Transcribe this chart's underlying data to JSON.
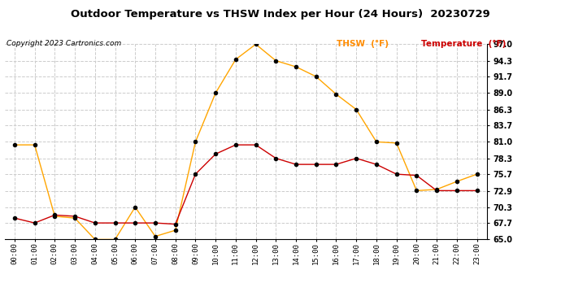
{
  "title": "Outdoor Temperature vs THSW Index per Hour (24 Hours)  20230729",
  "copyright": "Copyright 2023 Cartronics.com",
  "legend_thsw": "THSW  (°F)",
  "legend_temp": "Temperature  (°F)",
  "hours": [
    "00:00",
    "01:00",
    "02:00",
    "03:00",
    "04:00",
    "05:00",
    "06:00",
    "07:00",
    "08:00",
    "09:00",
    "10:00",
    "11:00",
    "12:00",
    "13:00",
    "14:00",
    "15:00",
    "16:00",
    "17:00",
    "18:00",
    "19:00",
    "20:00",
    "21:00",
    "22:00",
    "23:00"
  ],
  "thsw": [
    80.5,
    80.5,
    68.8,
    68.5,
    65.0,
    65.0,
    70.3,
    65.5,
    66.5,
    81.0,
    89.0,
    94.5,
    97.0,
    94.3,
    93.3,
    91.7,
    88.8,
    86.3,
    81.0,
    80.8,
    73.0,
    73.2,
    74.5,
    75.7
  ],
  "temp": [
    68.5,
    67.7,
    69.0,
    68.8,
    67.7,
    67.7,
    67.7,
    67.7,
    67.5,
    75.7,
    79.0,
    80.5,
    80.5,
    78.3,
    77.3,
    77.3,
    77.3,
    78.3,
    77.3,
    75.7,
    75.5,
    73.0,
    73.0,
    73.0
  ],
  "ylim": [
    65.0,
    97.0
  ],
  "yticks": [
    65.0,
    67.7,
    70.3,
    72.9,
    75.7,
    78.3,
    81.0,
    83.7,
    86.3,
    89.0,
    91.7,
    94.3,
    97.0
  ],
  "yticklabels": [
    "65.0",
    "67.7",
    "70.3",
    "72.9",
    "75.7",
    "78.3",
    "81.0",
    "83.7",
    "86.3",
    "89.0",
    "91.7",
    "94.3",
    "97.0"
  ],
  "thsw_color": "#FFA500",
  "temp_color": "#CC0000",
  "marker_color": "black",
  "bg_color": "#FFFFFF",
  "grid_color": "#CCCCCC",
  "title_color": "#000000",
  "copyright_color": "#000000",
  "legend_thsw_color": "#FF8C00",
  "legend_temp_color": "#CC0000"
}
